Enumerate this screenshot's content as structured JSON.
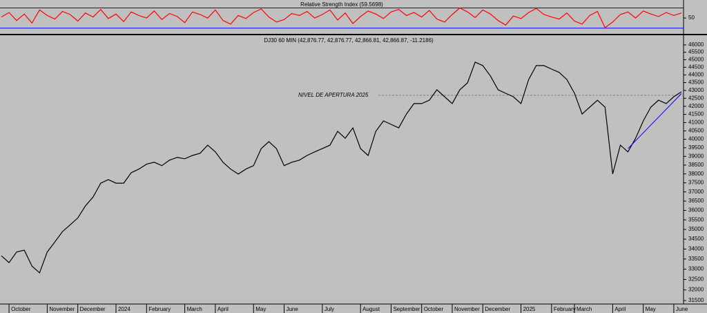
{
  "chart_data": [
    {
      "type": "line",
      "title": "Relative Strength Index (59.5698)",
      "color": "#ff0000",
      "level_color": "#0000ff",
      "levels": [
        70,
        30
      ],
      "ylim": [
        20,
        83
      ],
      "yticks": [
        50
      ],
      "values": [
        52,
        61,
        45,
        58,
        40,
        66,
        55,
        48,
        63,
        57,
        44,
        60,
        52,
        67,
        49,
        58,
        43,
        62,
        55,
        50,
        64,
        47,
        59,
        53,
        41,
        62,
        57,
        50,
        66,
        45,
        38,
        55,
        49,
        61,
        68,
        52,
        42,
        47,
        59,
        55,
        63,
        50,
        57,
        66,
        46,
        60,
        39,
        53,
        64,
        58,
        49,
        62,
        67,
        55,
        61,
        52,
        65,
        48,
        42,
        57,
        70,
        62,
        51,
        66,
        58,
        45,
        36,
        54,
        49,
        61,
        69,
        57,
        52,
        48,
        60,
        44,
        38,
        55,
        63,
        31,
        42,
        57,
        62,
        50,
        64,
        58,
        53,
        61,
        55,
        60
      ]
    },
    {
      "type": "line",
      "title": "DJ30 60 MIN (42,876.77, 42,876.77, 42,866.81, 42,866.87, -11.2186)",
      "color": "#000000",
      "log_scale": true,
      "ylim": [
        31340,
        46470
      ],
      "yticks": [
        31500,
        32000,
        32500,
        33000,
        33500,
        34000,
        34500,
        35000,
        35500,
        36000,
        36500,
        37000,
        37500,
        38000,
        38500,
        39000,
        39500,
        40000,
        40500,
        41000,
        41500,
        42000,
        42500,
        43000,
        43500,
        44000,
        44500,
        45000,
        45500,
        46000
      ],
      "categories": [
        null,
        "October",
        null,
        null,
        null,
        null,
        "November",
        null,
        null,
        null,
        "December",
        null,
        null,
        null,
        null,
        "2024",
        null,
        null,
        null,
        "February",
        null,
        null,
        null,
        null,
        "March",
        null,
        null,
        null,
        "April",
        null,
        null,
        null,
        null,
        "May",
        null,
        null,
        null,
        "June",
        null,
        null,
        null,
        null,
        "July",
        null,
        null,
        null,
        null,
        "August",
        null,
        null,
        null,
        "September",
        null,
        null,
        null,
        "October",
        null,
        null,
        null,
        "November",
        null,
        null,
        null,
        "December",
        null,
        null,
        null,
        null,
        "2025",
        null,
        null,
        null,
        "February",
        null,
        null,
        "March",
        null,
        null,
        null,
        null,
        "April",
        null,
        null,
        null,
        "May",
        null,
        null,
        null,
        "June",
        null
      ],
      "values": [
        33660,
        33320,
        33850,
        33940,
        33150,
        32820,
        33850,
        34360,
        34890,
        35240,
        35600,
        36240,
        36720,
        37480,
        37680,
        37480,
        37480,
        38070,
        38270,
        38550,
        38660,
        38470,
        38780,
        38940,
        38860,
        39050,
        39180,
        39650,
        39260,
        38660,
        38270,
        37990,
        38270,
        38470,
        39450,
        39860,
        39450,
        38470,
        38660,
        38780,
        39050,
        39260,
        39450,
        39650,
        40470,
        40060,
        40680,
        39450,
        39050,
        40470,
        41100,
        40890,
        40680,
        41520,
        42170,
        42170,
        42380,
        43040,
        42600,
        42170,
        43040,
        43480,
        44840,
        44610,
        43930,
        43040,
        42820,
        42600,
        42170,
        43700,
        44610,
        44610,
        44380,
        44160,
        43700,
        42820,
        41520,
        41950,
        42380,
        41950,
        38000,
        39650,
        39260,
        40060,
        41100,
        41950,
        42380,
        42170,
        42600,
        42910
      ],
      "reference_line": {
        "label": "NIVEL DE APERTURA 2025",
        "value": 42690,
        "color": "#808080"
      },
      "trendline": {
        "values": [
          39450,
          42800
        ],
        "color": "#0000ff"
      }
    }
  ]
}
